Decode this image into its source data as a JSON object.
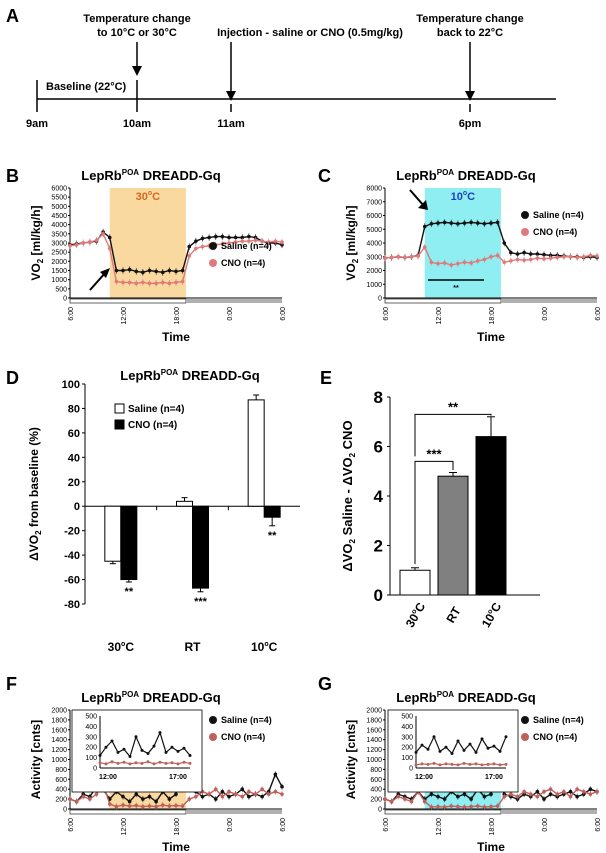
{
  "timeline": {
    "panel_letter": "A",
    "events": [
      {
        "label1": "Temperature change",
        "label2": "to 10°C or 30°C"
      },
      {
        "label1": "Injection - saline or CNO (0.5mg/kg)",
        "label2": ""
      },
      {
        "label1": "Temperature change",
        "label2": "back to 22°C"
      }
    ],
    "baseline_label": "Baseline (22°C)",
    "times": [
      "9am",
      "10am",
      "11am",
      "6pm"
    ]
  },
  "chart_data": [
    {
      "id": "B",
      "type": "line",
      "panel_letter": "B",
      "title": "LepRb",
      "title_sup": "POA",
      "title_rest": " DREADD-Gq",
      "ylabel": "VO₂ [ml/kg/h]",
      "xlabel": "Time",
      "ylim": [
        0,
        6000
      ],
      "yticks": [
        "0",
        "500",
        "1000",
        "1500",
        "2000",
        "2500",
        "3000",
        "3500",
        "4000",
        "4500",
        "5000",
        "5500",
        "6000"
      ],
      "xticks": [
        "6:00",
        "12:00",
        "18:00",
        "0:00",
        "6:00"
      ],
      "shaded_region": {
        "label": "30°C",
        "color": "#f9d9a0"
      },
      "series": [
        {
          "name": "Saline (n=4)",
          "color": "#111111",
          "values": [
            2900,
            2950,
            3000,
            3050,
            3100,
            3600,
            3300,
            1500,
            1500,
            1550,
            1450,
            1400,
            1500,
            1450,
            1400,
            1500,
            1450,
            1500,
            2800,
            3100,
            3250,
            3300,
            3350,
            3350,
            3300,
            3300,
            3300,
            3350,
            3300,
            3100,
            3000,
            3000,
            2900
          ]
        },
        {
          "name": "CNO (n=4)",
          "color": "#e07a7a",
          "values": [
            2850,
            2900,
            3000,
            3050,
            3150,
            3500,
            2700,
            900,
            850,
            850,
            800,
            850,
            800,
            800,
            850,
            800,
            850,
            900,
            2300,
            2700,
            2800,
            2850,
            2900,
            2950,
            3000,
            3050,
            3100,
            3100,
            3150,
            3100,
            3050,
            3100,
            3050
          ]
        }
      ]
    },
    {
      "id": "C",
      "type": "line",
      "panel_letter": "C",
      "title": "LepRb",
      "title_sup": "POA",
      "title_rest": " DREADD-Gq",
      "ylabel": "VO₂ [ml/kg/h]",
      "xlabel": "Time",
      "ylim": [
        0,
        8000
      ],
      "yticks": [
        "0",
        "1000",
        "2000",
        "3000",
        "4000",
        "5000",
        "6000",
        "7000",
        "8000"
      ],
      "xticks": [
        "6:00",
        "12:00",
        "18:00",
        "0:00",
        "6:00"
      ],
      "shaded_region": {
        "label": "10°C",
        "color": "#8eeef2"
      },
      "significance": "**",
      "series": [
        {
          "name": "Saline (n=4)",
          "color": "#111111",
          "values": [
            2900,
            2950,
            3000,
            2950,
            3000,
            3100,
            5200,
            5400,
            5450,
            5500,
            5450,
            5400,
            5450,
            5500,
            5450,
            5400,
            5450,
            5500,
            4000,
            3300,
            3200,
            3300,
            3200,
            3200,
            3150,
            3100,
            3100,
            3050,
            3000,
            3000,
            2950,
            3000,
            2950
          ]
        },
        {
          "name": "CNO (n=4)",
          "color": "#e07a7a",
          "values": [
            2900,
            2950,
            3000,
            2950,
            3000,
            3050,
            3700,
            2600,
            2500,
            2550,
            2400,
            2500,
            2600,
            2550,
            2700,
            2800,
            3000,
            3100,
            2600,
            2700,
            2800,
            2750,
            2800,
            2900,
            2850,
            2900,
            2950,
            3000,
            3000,
            2950,
            3000,
            3100,
            3050
          ]
        }
      ]
    },
    {
      "id": "D",
      "type": "bar",
      "panel_letter": "D",
      "title": "LepRb",
      "title_sup": "POA",
      "title_rest": " DREADD-Gq",
      "ylabel": "ΔVO₂ from baseline (%)",
      "ylim": [
        -80,
        100
      ],
      "yticks": [
        "-80",
        "-60",
        "-40",
        "-20",
        "0",
        "20",
        "40",
        "60",
        "80",
        "100"
      ],
      "categories": [
        "30°C",
        "RT",
        "10°C"
      ],
      "series": [
        {
          "name": "Saline (n=4)",
          "color": "#ffffff",
          "values": [
            -45,
            4,
            87
          ],
          "errors": [
            2,
            3,
            4
          ]
        },
        {
          "name": "CNO (n=4)",
          "color": "#000000",
          "values": [
            -60,
            -67,
            -9
          ],
          "errors": [
            2,
            3,
            7
          ]
        }
      ],
      "significance": [
        "**",
        "***",
        "**"
      ]
    },
    {
      "id": "E",
      "type": "bar",
      "panel_letter": "E",
      "ylabel": "ΔVO₂ Saline - ΔVO₂ CNO",
      "ylim": [
        0,
        8
      ],
      "yticks": [
        "0",
        "2",
        "4",
        "6",
        "8"
      ],
      "categories": [
        "30°C",
        "RT",
        "10°C"
      ],
      "values": [
        1.0,
        4.8,
        6.4
      ],
      "errors": [
        0.1,
        0.15,
        0.8
      ],
      "colors": [
        "#ffffff",
        "#808080",
        "#000000"
      ],
      "significance": [
        "***",
        "**"
      ]
    },
    {
      "id": "F",
      "type": "line",
      "panel_letter": "F",
      "title": "LepRb",
      "title_sup": "POA",
      "title_rest": " DREADD-Gq",
      "ylabel": "Activity [cnts]",
      "xlabel": "Time",
      "ylim": [
        0,
        2000
      ],
      "yticks": [
        "0",
        "200",
        "400",
        "600",
        "800",
        "1000",
        "1200",
        "1400",
        "1600",
        "1800",
        "2000"
      ],
      "xticks": [
        "6:00",
        "12:00",
        "18:00",
        "0:00",
        "6:00"
      ],
      "shaded_region": {
        "label": "30°C",
        "color": "#f9d9a0"
      },
      "series": [
        {
          "name": "Saline (n=4)",
          "color": "#111111",
          "values": [
            200,
            150,
            300,
            250,
            450,
            400,
            200,
            350,
            250,
            150,
            300,
            200,
            250,
            150,
            350,
            200,
            300,
            800,
            600,
            350,
            250,
            300,
            200,
            350,
            250,
            300,
            400,
            250,
            300,
            250,
            350,
            700,
            450
          ]
        },
        {
          "name": "CNO (n=4)",
          "color": "#c0605a",
          "values": [
            200,
            150,
            250,
            200,
            300,
            500,
            100,
            50,
            80,
            60,
            70,
            50,
            60,
            50,
            80,
            60,
            70,
            60,
            200,
            250,
            350,
            300,
            400,
            250,
            350,
            300,
            250,
            350,
            300,
            400,
            300,
            350,
            300
          ]
        }
      ],
      "inset": {
        "ylim": [
          0,
          500
        ],
        "yticks": [
          "0",
          "100",
          "200",
          "300",
          "400",
          "500"
        ],
        "xticks": [
          "12:00",
          "17:00"
        ],
        "saline": [
          120,
          200,
          260,
          150,
          180,
          110,
          300,
          170,
          140,
          210,
          340,
          150,
          200,
          160,
          190,
          120
        ],
        "cno": [
          50,
          40,
          60,
          45,
          55,
          40,
          50,
          45,
          60,
          40,
          55,
          45,
          50,
          40,
          55,
          45
        ]
      }
    },
    {
      "id": "G",
      "type": "line",
      "panel_letter": "G",
      "title": "LepRb",
      "title_sup": "POA",
      "title_rest": " DREADD-Gq",
      "ylabel": "Activity [cnts]",
      "xlabel": "Time",
      "ylim": [
        0,
        2000
      ],
      "yticks": [
        "0",
        "200",
        "400",
        "600",
        "800",
        "1000",
        "1200",
        "1400",
        "1600",
        "1800",
        "2000"
      ],
      "xticks": [
        "6:00",
        "12:00",
        "18:00",
        "0:00",
        "6:00"
      ],
      "shaded_region": {
        "label": "10°C",
        "color": "#8eeef2"
      },
      "series": [
        {
          "name": "Saline (n=4)",
          "color": "#111111",
          "values": [
            200,
            150,
            300,
            250,
            200,
            350,
            200,
            300,
            250,
            200,
            350,
            250,
            300,
            200,
            400,
            250,
            300,
            750,
            300,
            250,
            200,
            300,
            250,
            350,
            200,
            300,
            250,
            300,
            350,
            250,
            300,
            400,
            350
          ]
        },
        {
          "name": "CNO (n=4)",
          "color": "#c0605a",
          "values": [
            200,
            150,
            250,
            200,
            150,
            350,
            150,
            40,
            50,
            40,
            60,
            50,
            40,
            50,
            60,
            40,
            50,
            60,
            250,
            300,
            250,
            350,
            300,
            250,
            350,
            400,
            300,
            350,
            250,
            400,
            350,
            300,
            350
          ]
        }
      ],
      "inset": {
        "ylim": [
          0,
          500
        ],
        "yticks": [
          "0",
          "100",
          "200",
          "300",
          "400",
          "500"
        ],
        "xticks": [
          "12:00",
          "17:00"
        ],
        "saline": [
          150,
          220,
          180,
          300,
          160,
          200,
          140,
          260,
          170,
          230,
          150,
          280,
          190,
          210,
          160,
          300
        ],
        "cno": [
          30,
          40,
          35,
          45,
          30,
          40,
          35,
          30,
          45,
          35,
          40,
          30,
          35,
          40,
          30,
          35
        ]
      }
    }
  ]
}
